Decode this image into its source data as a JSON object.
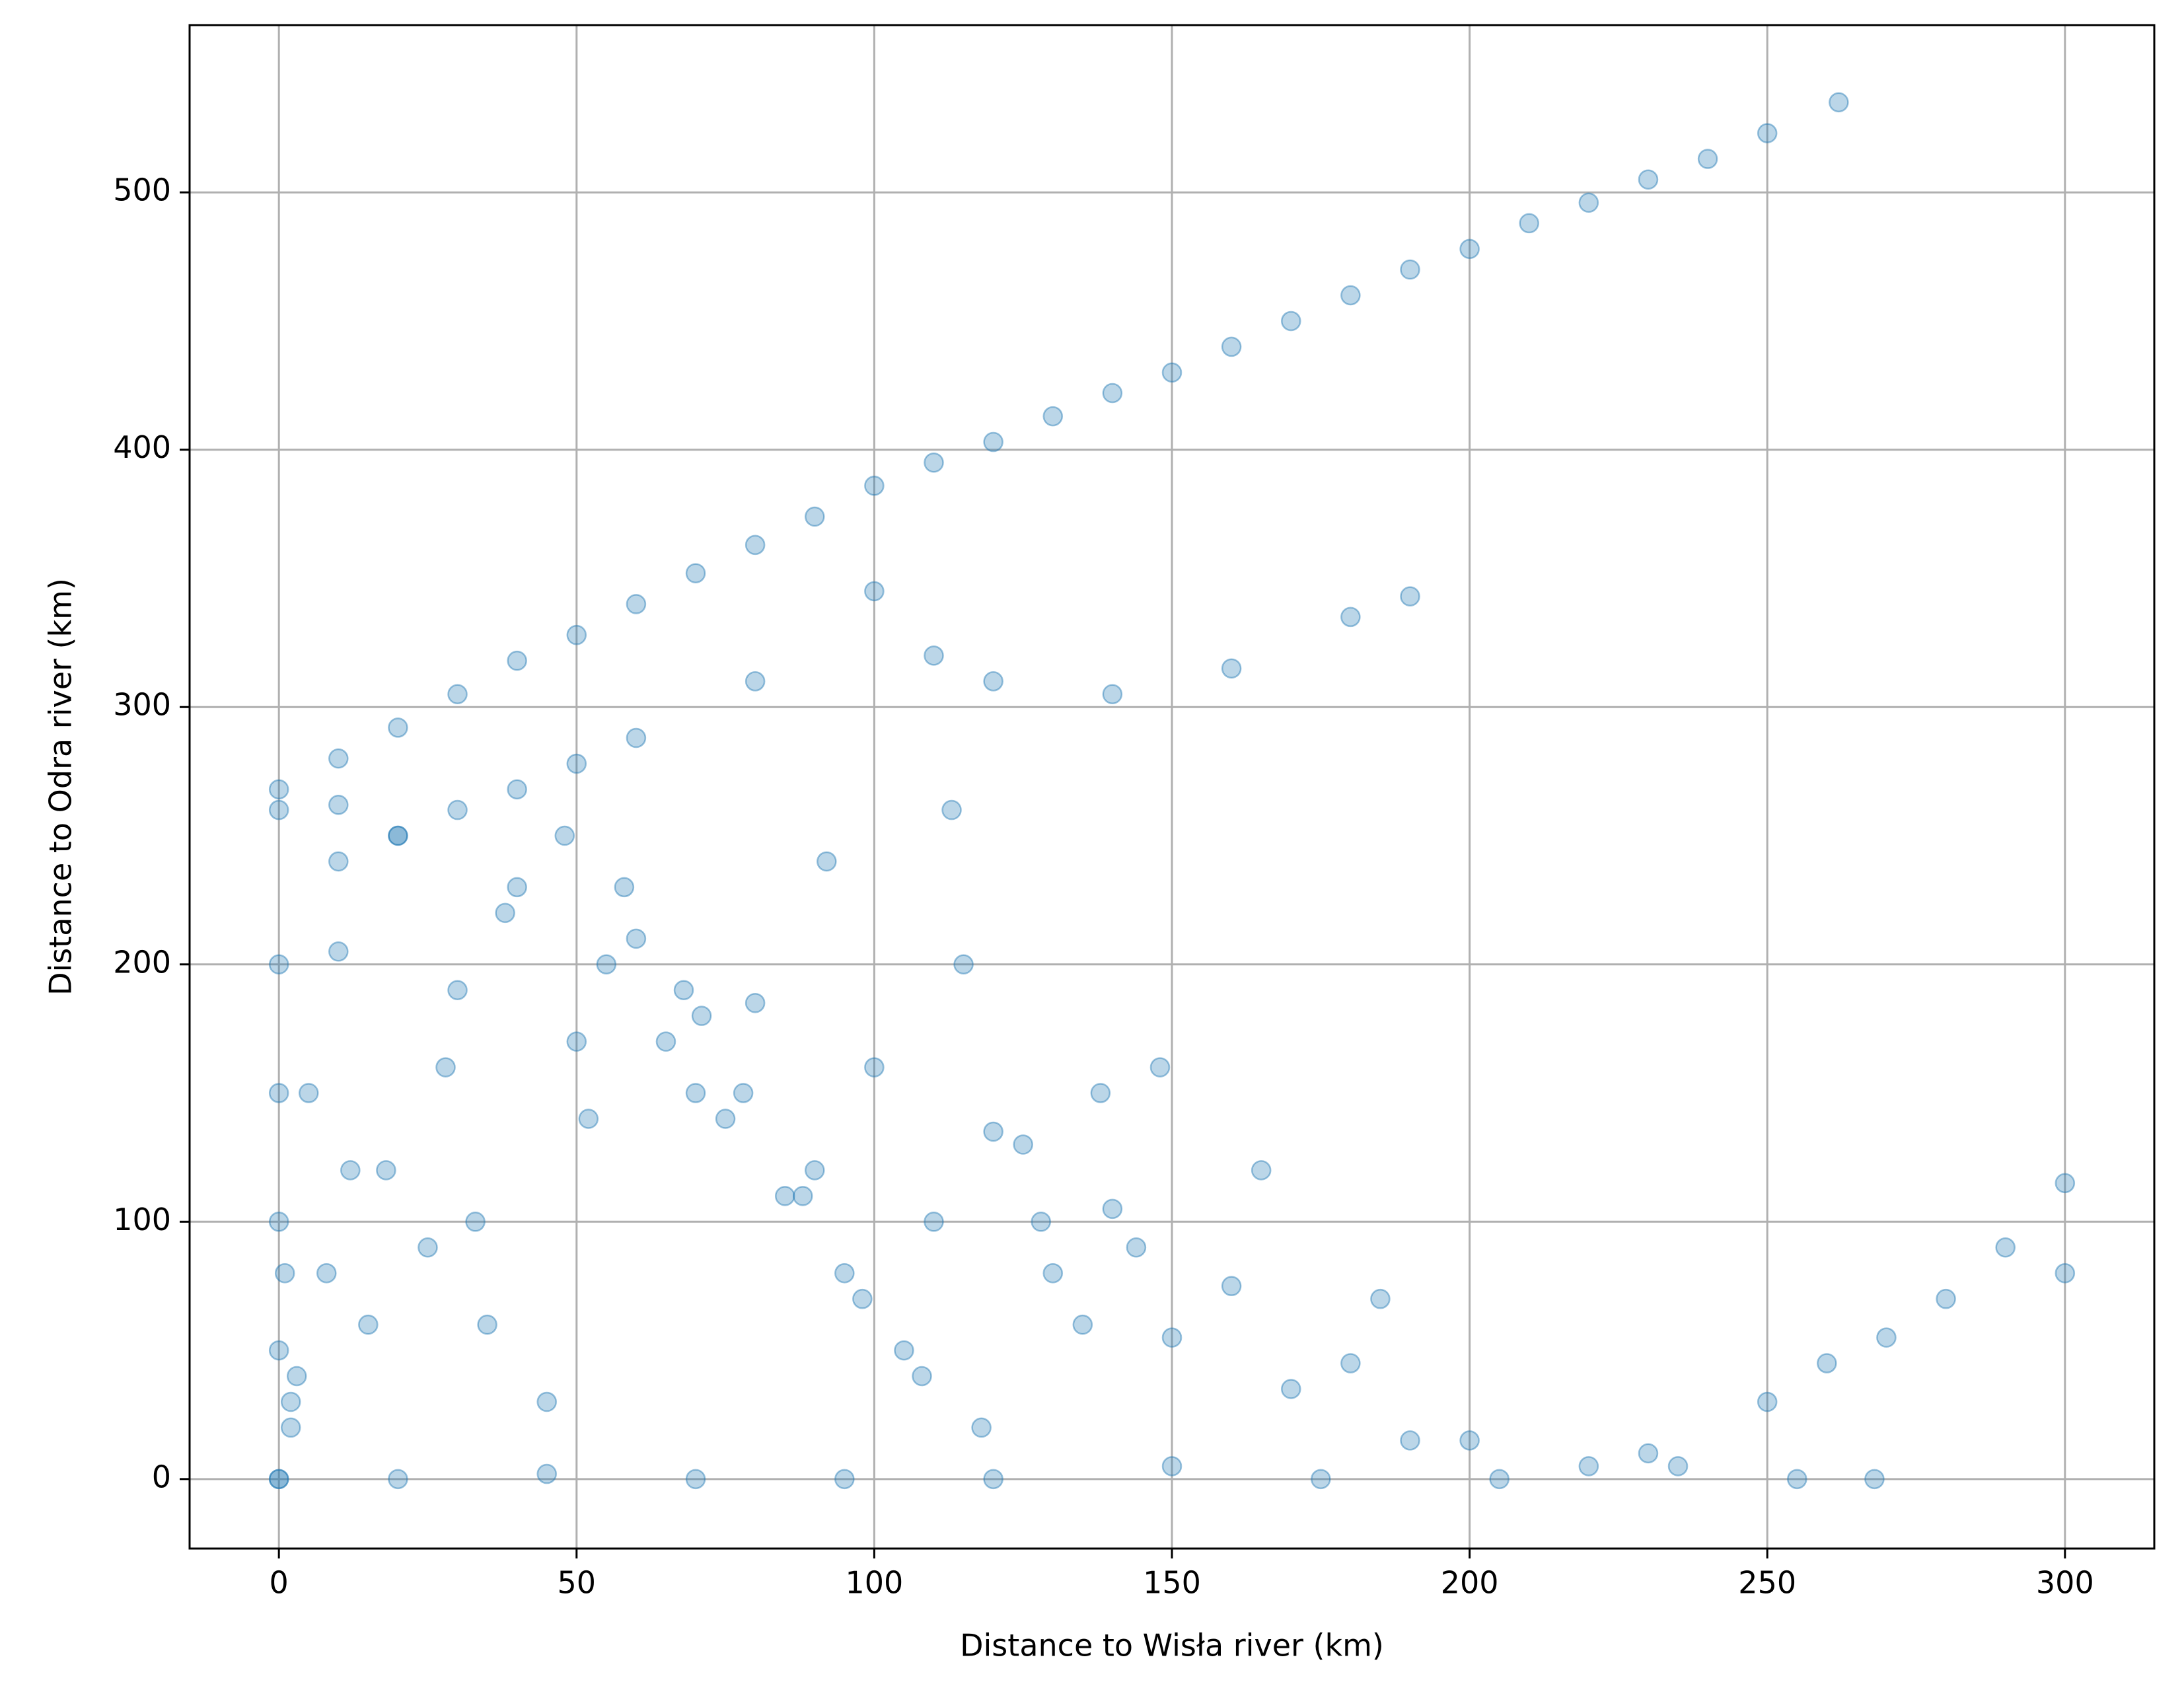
{
  "chart_data": {
    "type": "scatter",
    "xlabel": "Distance to Wisła river (km)",
    "ylabel": "Distance to Odra river (km)",
    "x": [
      0,
      10,
      20,
      30,
      40,
      50,
      60,
      70,
      80,
      90,
      100,
      110,
      120,
      130,
      140,
      150,
      160,
      170,
      180,
      190,
      200,
      210,
      220,
      230,
      240,
      250,
      262,
      10,
      20,
      30,
      40,
      50,
      60,
      80,
      100,
      110,
      120,
      140,
      160,
      180,
      190,
      10,
      20,
      40,
      60,
      80,
      100,
      120,
      140,
      160,
      180,
      200,
      220,
      10,
      30,
      50,
      70,
      90,
      110,
      130,
      150,
      170,
      190,
      230,
      250,
      270,
      290,
      300,
      300,
      280,
      260,
      5,
      12,
      25,
      35,
      45,
      55,
      65,
      75,
      85,
      95,
      105,
      115,
      125,
      135,
      3,
      8,
      18,
      28,
      38,
      48,
      58,
      68,
      78,
      88,
      98,
      108,
      118,
      128,
      138,
      148,
      2,
      15,
      33,
      52,
      71,
      92,
      113,
      144,
      165,
      185,
      0,
      0,
      0,
      0,
      0,
      0,
      2,
      1,
      0,
      20,
      45,
      70,
      95,
      120,
      150,
      175,
      205,
      235,
      255,
      268
    ],
    "values": [
      268,
      280,
      292,
      305,
      318,
      328,
      340,
      352,
      363,
      374,
      386,
      395,
      403,
      413,
      422,
      430,
      440,
      450,
      460,
      470,
      478,
      488,
      496,
      505,
      513,
      523,
      535,
      240,
      250,
      260,
      268,
      278,
      288,
      310,
      345,
      320,
      310,
      305,
      315,
      335,
      343,
      262,
      250,
      230,
      210,
      185,
      160,
      135,
      105,
      75,
      45,
      15,
      5,
      205,
      190,
      170,
      150,
      120,
      100,
      80,
      55,
      35,
      15,
      10,
      30,
      55,
      90,
      115,
      80,
      70,
      45,
      150,
      120,
      90,
      60,
      30,
      200,
      170,
      140,
      110,
      80,
      50,
      200,
      130,
      60,
      40,
      80,
      120,
      160,
      220,
      250,
      230,
      190,
      150,
      110,
      70,
      40,
      20,
      100,
      150,
      160,
      20,
      60,
      100,
      140,
      180,
      240,
      260,
      90,
      120,
      70,
      0,
      50,
      100,
      150,
      200,
      260,
      30,
      80,
      0,
      0,
      2,
      0,
      0,
      0,
      5,
      0,
      0,
      5,
      0,
      0
    ],
    "color": "#1f77b4",
    "alpha": 0.3,
    "xlim": [
      -15,
      315
    ],
    "ylim": [
      -27,
      565
    ],
    "xticks": [
      0,
      50,
      100,
      150,
      200,
      250,
      300
    ],
    "yticks": [
      0,
      100,
      200,
      300,
      400,
      500
    ],
    "grid": true
  }
}
